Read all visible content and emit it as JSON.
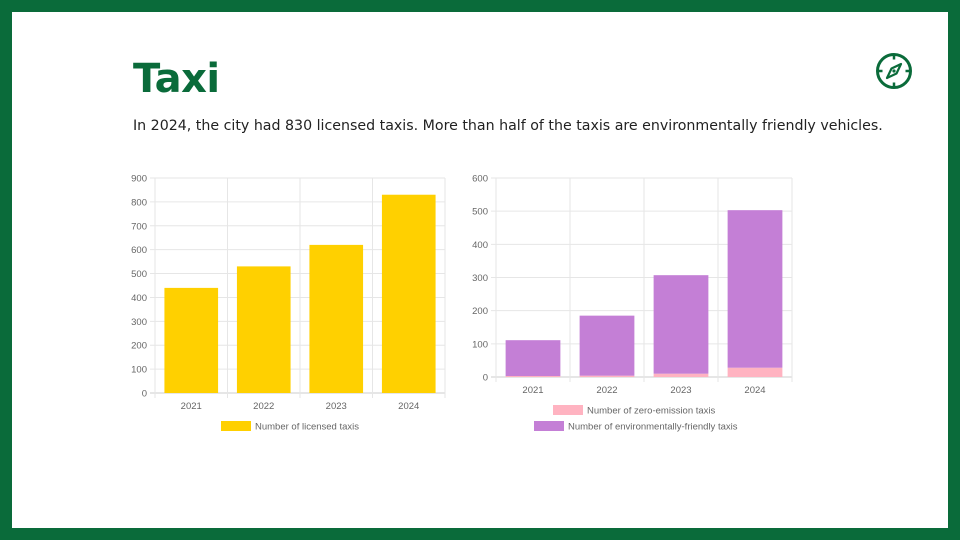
{
  "slide": {
    "title": "Taxi",
    "subtitle": "In 2024, the city had 830 licensed taxis. More than half of the taxis are environmentally friendly vehicles."
  },
  "icons": {
    "corner": "compass-icon"
  },
  "colors": {
    "frame": "#0a6b3a",
    "title": "#0a6b3a",
    "licensed": "#ffd000",
    "zero_emission": "#ffb3c1",
    "eco_friendly": "#c47fd6"
  },
  "chart_data": [
    {
      "type": "bar",
      "categories": [
        "2021",
        "2022",
        "2023",
        "2024"
      ],
      "series": [
        {
          "name": "Number of licensed taxis",
          "values": [
            440,
            530,
            620,
            830
          ]
        }
      ],
      "yticks": [
        "0",
        "100",
        "200",
        "300",
        "400",
        "500",
        "600",
        "700",
        "800",
        "900"
      ],
      "ylim": [
        0,
        900
      ],
      "grid": true,
      "legend": "bottom"
    },
    {
      "type": "bar",
      "stacked": true,
      "categories": [
        "2021",
        "2022",
        "2023",
        "2024"
      ],
      "series": [
        {
          "name": "Number of zero-emission taxis",
          "values": [
            3,
            4,
            10,
            28
          ]
        },
        {
          "name": "Number of environmentally-friendly taxis",
          "values": [
            108,
            181,
            297,
            475
          ]
        }
      ],
      "yticks": [
        "0",
        "100",
        "200",
        "300",
        "400",
        "500",
        "600"
      ],
      "ylim": [
        0,
        600
      ],
      "grid": true,
      "legend": "bottom"
    }
  ]
}
